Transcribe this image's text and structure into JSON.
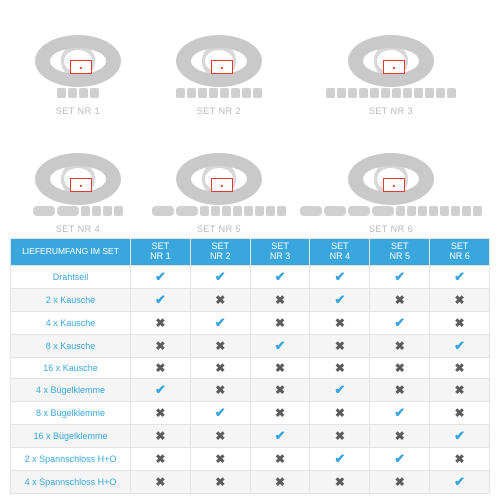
{
  "products": [
    {
      "label": "SET NR 1",
      "bits": [
        "sm",
        "sm",
        "sm",
        "sm"
      ],
      "turnbuckle": false
    },
    {
      "label": "SET NR 2",
      "bits": [
        "sm",
        "sm",
        "sm",
        "sm",
        "sm",
        "sm",
        "sm",
        "sm"
      ],
      "turnbuckle": false
    },
    {
      "label": "SET NR 3",
      "bits": [
        "sm",
        "sm",
        "sm",
        "sm",
        "sm",
        "sm",
        "sm",
        "sm",
        "sm",
        "sm",
        "sm",
        "sm"
      ],
      "turnbuckle": false
    },
    {
      "label": "SET NR 4",
      "bits": [
        "lg",
        "lg",
        "sm",
        "sm",
        "sm",
        "sm"
      ],
      "turnbuckle": true
    },
    {
      "label": "SET NR 5",
      "bits": [
        "lg",
        "lg",
        "sm",
        "sm",
        "sm",
        "sm",
        "sm",
        "sm",
        "sm",
        "sm"
      ],
      "turnbuckle": true
    },
    {
      "label": "SET NR 6",
      "bits": [
        "lg",
        "lg",
        "lg",
        "lg",
        "sm",
        "sm",
        "sm",
        "sm",
        "sm",
        "sm",
        "sm",
        "sm"
      ],
      "turnbuckle": true
    }
  ],
  "table": {
    "header_label": "LIEFERUMFANG IM SET",
    "columns": [
      "SET NR 1",
      "SET NR 2",
      "SET NR 3",
      "SET NR 4",
      "SET NR 5",
      "SET NR 6"
    ],
    "rows": [
      {
        "label": "Drahtseil",
        "vals": [
          true,
          true,
          true,
          true,
          true,
          true
        ]
      },
      {
        "label": "2 x Kausche",
        "vals": [
          true,
          false,
          false,
          true,
          false,
          false
        ]
      },
      {
        "label": "4 x Kausche",
        "vals": [
          false,
          true,
          false,
          false,
          true,
          false
        ]
      },
      {
        "label": "8 x Kausche",
        "vals": [
          false,
          false,
          true,
          false,
          false,
          true
        ]
      },
      {
        "label": "16 x Kausche",
        "vals": [
          false,
          false,
          false,
          false,
          false,
          false
        ]
      },
      {
        "label": "4 x Bügelklemme",
        "vals": [
          true,
          false,
          false,
          true,
          false,
          false
        ]
      },
      {
        "label": "8 x Bügelklemme",
        "vals": [
          false,
          true,
          false,
          false,
          true,
          false
        ]
      },
      {
        "label": "16 x Bügelklemme",
        "vals": [
          false,
          false,
          true,
          false,
          false,
          true
        ]
      },
      {
        "label": "2 x Spannschloss H+O",
        "vals": [
          false,
          false,
          false,
          true,
          true,
          false
        ]
      },
      {
        "label": "4 x Spannschloss H+O",
        "vals": [
          false,
          false,
          false,
          false,
          false,
          true
        ]
      }
    ]
  },
  "colors": {
    "brand": "#39a7dd",
    "cross": "#5c5c5c",
    "caption": "#b8b8b8",
    "border": "#e4e4e4",
    "row_alt": "#f5f5f5"
  }
}
